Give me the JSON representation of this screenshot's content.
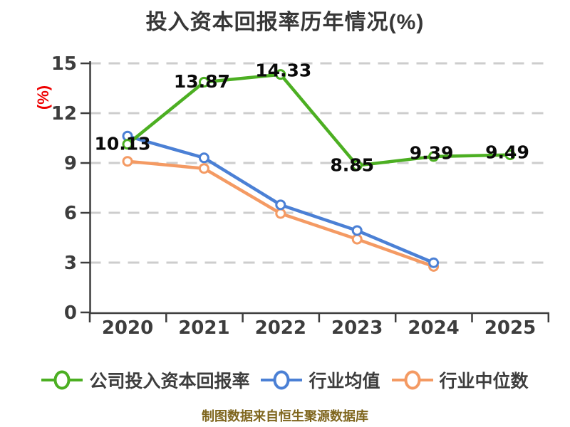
{
  "title": "投入资本回报率历年情况(%)",
  "y_axis_label": "(%)",
  "footer": "制图数据来自恒生聚源数据库",
  "colors": {
    "company_line": "#4caf22",
    "industry_mean_line": "#4b80d5",
    "industry_median_line": "#f49a63",
    "grid": "#cdcdcd",
    "axis": "#3d3d3d",
    "tick_text": "#3d3d3d",
    "title_text": "#373737",
    "ylabel_text": "#ee0000",
    "footer_text": "#7f661e",
    "data_label_text": "#0a0a0a",
    "marker_fill": "#ffffff"
  },
  "chart_data": {
    "type": "line",
    "title": "投入资本回报率历年情况(%)",
    "ylabel": "(%)",
    "xlabel": "",
    "x": [
      "2020",
      "2021",
      "2022",
      "2023",
      "2024",
      "2025"
    ],
    "y_ticks": [
      0,
      3,
      6,
      9,
      12,
      15
    ],
    "ylim": [
      0,
      15
    ],
    "grid": true,
    "grid_style": "dashed",
    "legend_position": "bottom",
    "series": [
      {
        "name": "公司投入资本回报率",
        "color": "#4caf22",
        "values": [
          10.13,
          13.87,
          14.33,
          8.85,
          9.39,
          9.49
        ],
        "labels": [
          "10.13",
          "13.87",
          "14.33",
          "8.85",
          "9.39",
          "9.49"
        ]
      },
      {
        "name": "行业均值",
        "color": "#4b80d5",
        "values": [
          10.62,
          9.31,
          6.48,
          4.93,
          2.99,
          null
        ],
        "labels": null
      },
      {
        "name": "行业中位数",
        "color": "#f49a63",
        "values": [
          9.1,
          8.67,
          5.96,
          4.41,
          2.77,
          null
        ],
        "labels": null
      }
    ]
  }
}
